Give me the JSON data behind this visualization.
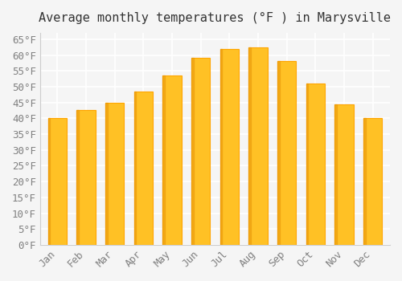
{
  "title": "Average monthly temperatures (°F ) in Marysville",
  "months": [
    "Jan",
    "Feb",
    "Mar",
    "Apr",
    "May",
    "Jun",
    "Jul",
    "Aug",
    "Sep",
    "Oct",
    "Nov",
    "Dec"
  ],
  "values": [
    40.0,
    42.5,
    45.0,
    48.5,
    53.5,
    59.0,
    62.0,
    62.5,
    58.0,
    51.0,
    44.5,
    40.0
  ],
  "bar_color_main": "#FFC125",
  "bar_color_edge": "#FFA500",
  "ylim": [
    0,
    67
  ],
  "yticks": [
    0,
    5,
    10,
    15,
    20,
    25,
    30,
    35,
    40,
    45,
    50,
    55,
    60,
    65
  ],
  "background_color": "#f5f5f5",
  "grid_color": "#ffffff",
  "title_fontsize": 11,
  "tick_fontsize": 9
}
